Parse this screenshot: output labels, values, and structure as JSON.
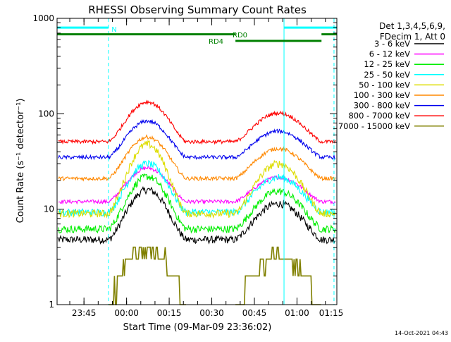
{
  "chart_data": {
    "type": "line",
    "title": "RHESSI Observing Summary Count Rates",
    "xlabel": "Start Time (09-Mar-09 23:36:02)",
    "ylabel": "Count Rate (s⁻¹ detector⁻¹)",
    "yscale": "log",
    "ylim": [
      1,
      1000
    ],
    "xlim_minutes": [
      -0.5,
      98
    ],
    "ytick_labels": [
      {
        "value": 1,
        "label": "1"
      },
      {
        "value": 10,
        "label": "10"
      },
      {
        "value": 100,
        "label": "100"
      },
      {
        "value": 1000,
        "label": "1000"
      }
    ],
    "xtick_labels": [
      {
        "minutes": 8.97,
        "label": "23:45"
      },
      {
        "minutes": 23.97,
        "label": "00:00"
      },
      {
        "minutes": 38.97,
        "label": "00:15"
      },
      {
        "minutes": 53.97,
        "label": "00:30"
      },
      {
        "minutes": 68.97,
        "label": "00:45"
      },
      {
        "minutes": 83.97,
        "label": "01:00"
      },
      {
        "minutes": 98.97,
        "label": "01:15"
      }
    ],
    "legend_header": [
      "Det 1,3,4,5,6,9,",
      "FDecim 1, Att 0"
    ],
    "legend_position": "right",
    "series": [
      {
        "name": "3 - 6 keV",
        "color": "#000000",
        "base": 4.8,
        "peak": 16
      },
      {
        "name": "6 - 12 keV",
        "color": "#ff00ff",
        "base": 12,
        "peak": 27
      },
      {
        "name": "12 - 25 keV",
        "color": "#00ee00",
        "base": 6.2,
        "peak": 22
      },
      {
        "name": "25 - 50 keV",
        "color": "#00ffff",
        "base": 9.3,
        "peak": 30
      },
      {
        "name": "50 - 100 keV",
        "color": "#dddd00",
        "base": 9,
        "peak": 48
      },
      {
        "name": "100 - 300 keV",
        "color": "#ff8800",
        "base": 21,
        "peak": 57
      },
      {
        "name": "300 - 800 keV",
        "color": "#0000ee",
        "base": 35,
        "peak": 84
      },
      {
        "name": "800 - 7000 keV",
        "color": "#ff0000",
        "base": 51,
        "peak": 133
      },
      {
        "name": "7000 - 15000 keV",
        "color": "#808000",
        "base": 1,
        "peak": 4
      }
    ],
    "flag_bars": [
      {
        "label": "N",
        "color": "#00ffff",
        "segments": [
          [
            -0.5,
            17.6
          ],
          [
            79.4,
            98
          ]
        ],
        "level": 800
      },
      {
        "label": "RD0",
        "color": "#008000",
        "segments": [
          [
            -0.5,
            62.3
          ],
          [
            92.6,
            98
          ]
        ],
        "level": 680
      },
      {
        "label": "RD4",
        "color": "#008000",
        "segments": [
          [
            62.3,
            92.6
          ]
        ],
        "level": 580
      }
    ],
    "vlines": [
      {
        "minutes": 17.6,
        "color": "#00ffff",
        "style": "dashed"
      },
      {
        "minutes": 79.4,
        "color": "#00ffff",
        "style": "solid"
      },
      {
        "minutes": 97,
        "color": "#00ffff",
        "style": "dashed"
      }
    ],
    "timestamp": "14-Oct-2021 04:43"
  }
}
